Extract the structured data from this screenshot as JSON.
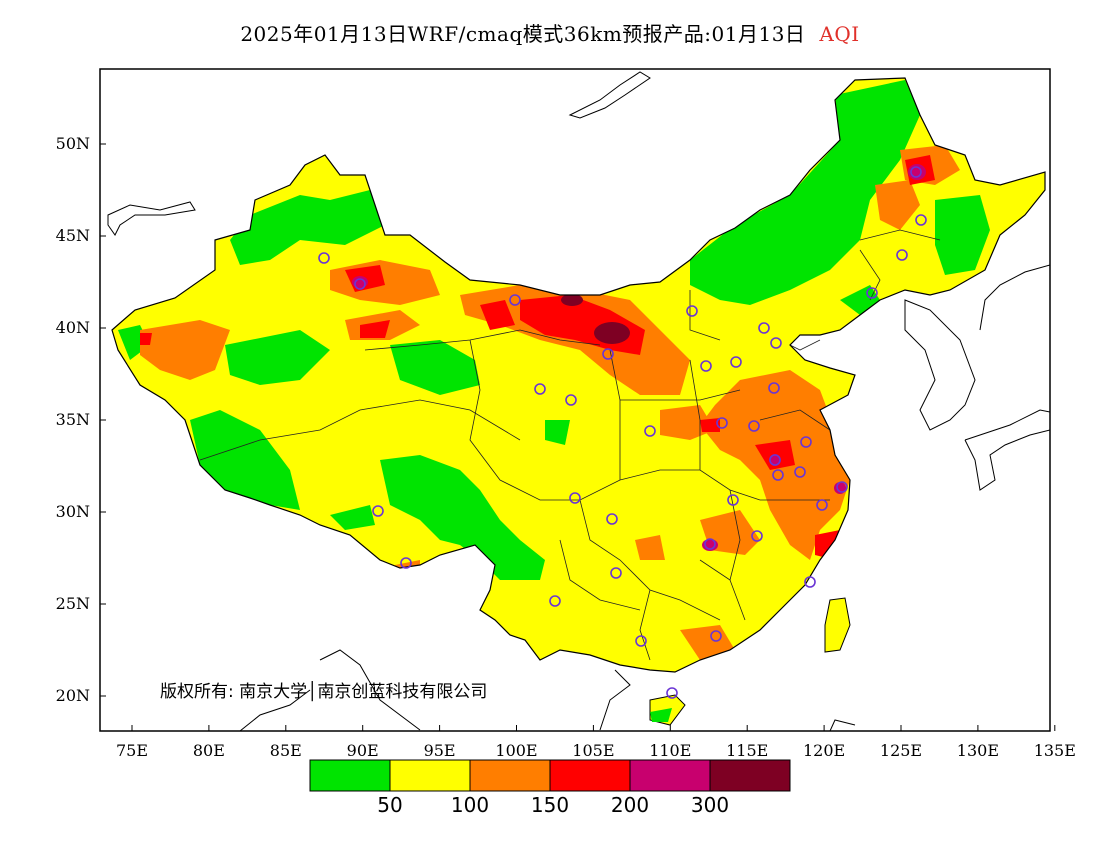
{
  "title": {
    "main": "2025年01月13日WRF/cmaq模式36km预报产品:01月13日",
    "variable": "AQI",
    "variable_color": "#e0302a"
  },
  "map": {
    "x_ticks": [
      "75E",
      "80E",
      "85E",
      "90E",
      "95E",
      "100E",
      "105E",
      "110E",
      "115E",
      "120E",
      "125E",
      "130E",
      "135E"
    ],
    "y_ticks": [
      "50N",
      "45N",
      "40N",
      "35N",
      "30N",
      "25N",
      "20N"
    ],
    "copyright": "版权所有: 南京大学│南京创蓝科技有限公司"
  },
  "legend": {
    "colors": [
      "#00e400",
      "#ffff00",
      "#ff7e00",
      "#ff0000",
      "#c8006e",
      "#7e0023"
    ],
    "labels": [
      "50",
      "100",
      "150",
      "200",
      "300"
    ]
  }
}
